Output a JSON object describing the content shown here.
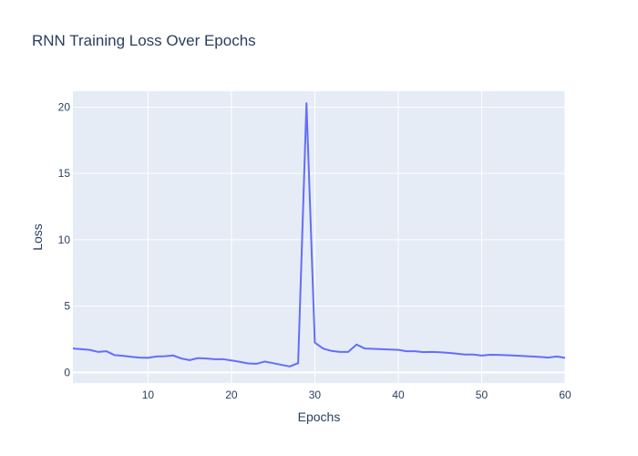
{
  "chart_data": {
    "type": "line",
    "title": "RNN Training Loss Over Epochs",
    "xlabel": "Epochs",
    "ylabel": "Loss",
    "xlim": [
      1,
      60
    ],
    "ylim": [
      -0.8,
      21.2
    ],
    "xticks": [
      10,
      20,
      30,
      40,
      50,
      60
    ],
    "yticks": [
      0,
      5,
      10,
      15,
      20
    ],
    "grid": true,
    "legend": "none",
    "colors": {
      "line": "#636efa",
      "plot_bg": "#e5ecf6",
      "grid": "#ffffff",
      "text": "#2a3f5f"
    },
    "series": [
      {
        "x": [
          1,
          2,
          3,
          4,
          5,
          6,
          7,
          8,
          9,
          10,
          11,
          12,
          13,
          14,
          15,
          16,
          17,
          18,
          19,
          20,
          21,
          22,
          23,
          24,
          25,
          26,
          27,
          28,
          29,
          30,
          31,
          32,
          33,
          34,
          35,
          36,
          37,
          38,
          39,
          40,
          41,
          42,
          43,
          44,
          45,
          46,
          47,
          48,
          49,
          50,
          51,
          52,
          53,
          54,
          55,
          56,
          57,
          58,
          59,
          60
        ],
        "y": [
          1.8,
          1.75,
          1.7,
          1.55,
          1.6,
          1.3,
          1.25,
          1.18,
          1.12,
          1.1,
          1.2,
          1.22,
          1.28,
          1.05,
          0.93,
          1.08,
          1.05,
          1.0,
          1.0,
          0.9,
          0.8,
          0.68,
          0.65,
          0.82,
          0.7,
          0.57,
          0.45,
          0.7,
          20.3,
          2.25,
          1.8,
          1.62,
          1.55,
          1.55,
          2.1,
          1.8,
          1.78,
          1.75,
          1.73,
          1.7,
          1.6,
          1.6,
          1.53,
          1.55,
          1.52,
          1.48,
          1.42,
          1.35,
          1.35,
          1.27,
          1.33,
          1.32,
          1.3,
          1.27,
          1.24,
          1.2,
          1.17,
          1.12,
          1.2,
          1.1
        ]
      }
    ]
  }
}
